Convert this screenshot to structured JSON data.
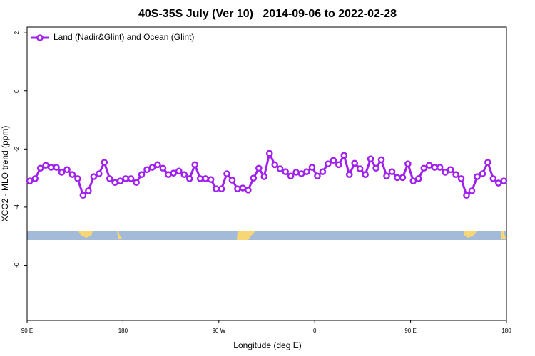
{
  "chart_data": {
    "type": "line",
    "title": "40S-35S July (Ver 10)   2014-09-06 to 2022-02-28",
    "x_label": "Longitude (deg E)",
    "y_label": "XCO2 - MLO trend (ppm)",
    "xlim": [
      90,
      540
    ],
    "ylim": [
      -7.9,
      2.2
    ],
    "xticks": [
      {
        "value": 90,
        "label": "90 E"
      },
      180,
      {
        "value": 270,
        "label": "90 W"
      },
      {
        "value": 360,
        "label": "0"
      },
      {
        "value": 450,
        "label": "90 E"
      },
      {
        "value": 540,
        "label": "180"
      }
    ],
    "yticks": [
      2,
      0,
      -2,
      -4,
      -6
    ],
    "legend": "top-left",
    "x": [
      92.5,
      97.5,
      102.5,
      107.5,
      112.5,
      117.5,
      122.5,
      127.5,
      132.5,
      137.5,
      142.5,
      147.5,
      152.5,
      157.5,
      162.5,
      167.5,
      172.5,
      177.5,
      182.5,
      187.5,
      192.5,
      197.5,
      202.5,
      207.5,
      212.5,
      217.5,
      222.5,
      227.5,
      232.5,
      237.5,
      242.5,
      247.5,
      252.5,
      257.5,
      262.5,
      267.5,
      272.5,
      277.5,
      282.5,
      287.5,
      292.5,
      297.5,
      302.5,
      307.5,
      312.5,
      317.5,
      322.5,
      327.5,
      332.5,
      337.5,
      342.5,
      347.5,
      352.5,
      357.5,
      362.5,
      367.5,
      372.5,
      377.5,
      382.5,
      387.5,
      392.5,
      397.5,
      402.5,
      407.5,
      412.5,
      417.5,
      422.5,
      427.5,
      432.5,
      437.5,
      442.5,
      447.5,
      452.5,
      457.5,
      462.5,
      467.5,
      472.5,
      477.5,
      482.5,
      487.5,
      492.5,
      497.5,
      502.5,
      507.5,
      512.5,
      517.5,
      522.5,
      527.5,
      532.5,
      537.5
    ],
    "series": [
      {
        "name": "Land (Nadir&Glint) and Ocean (Glint)",
        "color": "#a020f0",
        "values": [
          -3.1,
          -3.02,
          -2.66,
          -2.56,
          -2.63,
          -2.63,
          -2.8,
          -2.71,
          -2.88,
          -3.02,
          -3.59,
          -3.44,
          -2.95,
          -2.85,
          -2.46,
          -3.02,
          -3.15,
          -3.1,
          -3.02,
          -3.02,
          -3.15,
          -2.88,
          -2.71,
          -2.63,
          -2.54,
          -2.66,
          -2.88,
          -2.83,
          -2.76,
          -2.88,
          -3.02,
          -2.54,
          -3.02,
          -3.02,
          -3.05,
          -3.37,
          -3.37,
          -2.85,
          -3.07,
          -3.37,
          -3.34,
          -3.41,
          -3.0,
          -2.66,
          -2.95,
          -2.15,
          -2.54,
          -2.68,
          -2.78,
          -2.93,
          -2.8,
          -2.85,
          -2.78,
          -2.63,
          -2.93,
          -2.78,
          -2.51,
          -2.39,
          -2.54,
          -2.22,
          -2.88,
          -2.49,
          -2.68,
          -2.88,
          -2.34,
          -2.66,
          -2.37,
          -2.93,
          -2.78,
          -2.98,
          -2.98,
          -2.51,
          -3.1,
          -3.02,
          -2.66,
          -2.56,
          -2.63,
          -2.63,
          -2.8,
          -2.71,
          -2.88,
          -3.02,
          -3.59,
          -3.44,
          -2.95,
          -2.85,
          -2.46,
          -3.02,
          -3.17,
          -3.1
        ]
      }
    ]
  }
}
